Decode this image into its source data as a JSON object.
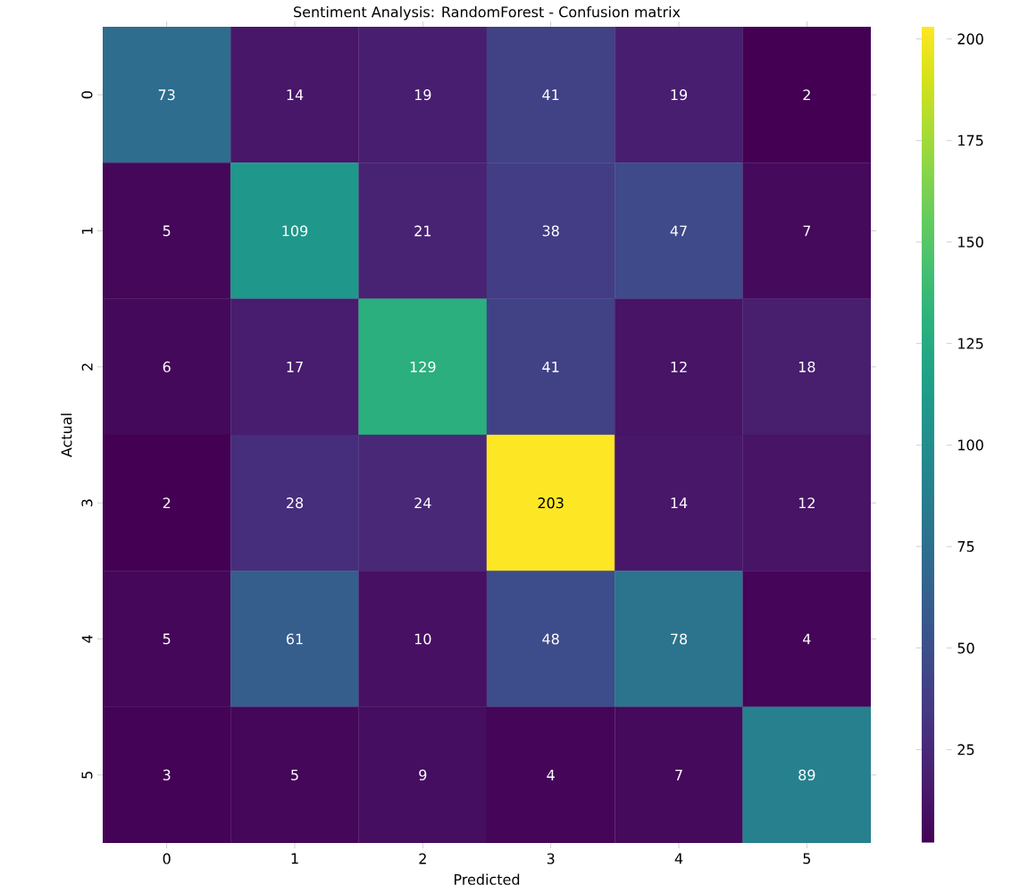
{
  "chart_data": {
    "type": "heatmap",
    "title": "Sentiment Analysis: RandomForest - Confusion matrix",
    "xlabel": "Predicted",
    "ylabel": "Actual",
    "categories": [
      "0",
      "1",
      "2",
      "3",
      "4",
      "5"
    ],
    "y_categories": [
      "0",
      "1",
      "2",
      "3",
      "4",
      "5"
    ],
    "cells": [
      [
        73,
        14,
        19,
        41,
        19,
        2
      ],
      [
        5,
        109,
        21,
        38,
        47,
        7
      ],
      [
        6,
        17,
        129,
        41,
        12,
        18
      ],
      [
        2,
        28,
        24,
        203,
        14,
        12
      ],
      [
        5,
        61,
        10,
        48,
        78,
        4
      ],
      [
        3,
        5,
        9,
        4,
        7,
        89
      ]
    ],
    "clim": [
      2,
      203
    ],
    "cticks": [
      25,
      50,
      75,
      100,
      125,
      150,
      175,
      200
    ],
    "data_labels": true
  }
}
